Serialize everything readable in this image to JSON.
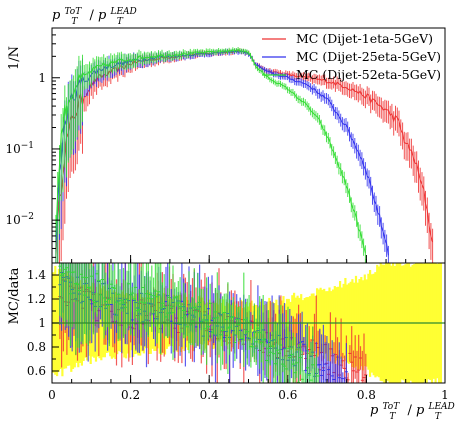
{
  "chart_data": [
    {
      "type": "line",
      "title": "p_T^{ToT}/p_T^{LEAD}",
      "title_parts": {
        "p": "p",
        "sup1": "ToT",
        "sub1": "T",
        "slash": " / ",
        "sup2": "LEAD",
        "sub2": "T"
      },
      "ylabel": "1/N",
      "y_scale": "log",
      "xlim": [
        0,
        1
      ],
      "ylim": [
        0.0025,
        5
      ],
      "y_ticks": [
        {
          "value": 1,
          "label": "1"
        },
        {
          "value": 0.1,
          "label": "10",
          "exp": "−1"
        },
        {
          "value": 0.01,
          "label": "10",
          "exp": "−2"
        }
      ],
      "legend_position": "top-right",
      "series": [
        {
          "name": "MC (Dijet-1eta-5GeV)",
          "color": "#ee3333",
          "x": [
            0.01,
            0.02,
            0.03,
            0.04,
            0.05,
            0.06,
            0.08,
            0.1,
            0.12,
            0.15,
            0.18,
            0.2,
            0.25,
            0.3,
            0.35,
            0.4,
            0.45,
            0.48,
            0.5,
            0.52,
            0.55,
            0.6,
            0.65,
            0.7,
            0.75,
            0.8,
            0.85,
            0.88,
            0.9,
            0.92,
            0.95,
            0.97
          ],
          "y": [
            0.004,
            0.02,
            0.08,
            0.15,
            0.25,
            0.35,
            0.55,
            0.8,
            1.0,
            1.2,
            1.4,
            1.6,
            1.8,
            1.95,
            2.1,
            2.2,
            2.3,
            2.4,
            2.2,
            1.5,
            1.25,
            1.1,
            1.0,
            0.9,
            0.75,
            0.55,
            0.35,
            0.25,
            0.12,
            0.08,
            0.02,
            0.004
          ]
        },
        {
          "name": "MC (Dijet-25eta-5GeV)",
          "color": "#3333ee",
          "x": [
            0.01,
            0.02,
            0.03,
            0.04,
            0.05,
            0.06,
            0.08,
            0.1,
            0.12,
            0.15,
            0.18,
            0.2,
            0.25,
            0.3,
            0.35,
            0.4,
            0.45,
            0.48,
            0.5,
            0.52,
            0.55,
            0.6,
            0.65,
            0.7,
            0.72,
            0.75,
            0.78,
            0.8,
            0.82,
            0.84,
            0.86
          ],
          "y": [
            0.005,
            0.05,
            0.2,
            0.35,
            0.5,
            0.7,
            0.9,
            1.1,
            1.3,
            1.5,
            1.6,
            1.7,
            1.9,
            2.0,
            2.1,
            2.2,
            2.3,
            2.35,
            2.2,
            1.5,
            1.2,
            1.0,
            0.8,
            0.5,
            0.35,
            0.2,
            0.09,
            0.05,
            0.02,
            0.008,
            0.003
          ]
        },
        {
          "name": "MC (Dijet-52eta-5GeV)",
          "color": "#33dd33",
          "x": [
            0.01,
            0.02,
            0.03,
            0.04,
            0.05,
            0.06,
            0.08,
            0.1,
            0.12,
            0.15,
            0.18,
            0.2,
            0.25,
            0.3,
            0.35,
            0.4,
            0.45,
            0.48,
            0.5,
            0.52,
            0.55,
            0.6,
            0.65,
            0.68,
            0.7,
            0.72,
            0.75,
            0.78,
            0.8
          ],
          "y": [
            0.006,
            0.1,
            0.3,
            0.45,
            0.6,
            0.8,
            1.0,
            1.25,
            1.4,
            1.6,
            1.75,
            1.85,
            2.0,
            2.1,
            2.2,
            2.3,
            2.4,
            2.45,
            2.3,
            1.4,
            1.0,
            0.7,
            0.4,
            0.25,
            0.15,
            0.08,
            0.03,
            0.008,
            0.003
          ]
        }
      ]
    },
    {
      "type": "line",
      "ylabel": "MC/data",
      "xlabel": "p_T^{ToT}/p_T^{LEAD}",
      "xlim": [
        0,
        1
      ],
      "ylim": [
        0.5,
        1.5
      ],
      "x_ticks": [
        {
          "value": 0,
          "label": "0"
        },
        {
          "value": 0.2,
          "label": "0.2"
        },
        {
          "value": 0.4,
          "label": "0.4"
        },
        {
          "value": 0.6,
          "label": "0.6"
        },
        {
          "value": 0.8,
          "label": "0.8"
        },
        {
          "value": 1,
          "label": "1"
        }
      ],
      "y_ticks": [
        {
          "value": 1.4,
          "label": "1.4"
        },
        {
          "value": 1.2,
          "label": "1.2"
        },
        {
          "value": 1.0,
          "label": "1"
        },
        {
          "value": 0.8,
          "label": "0.8"
        },
        {
          "value": 0.6,
          "label": "0.6"
        }
      ],
      "reference_line": 1.0,
      "reference_color": "#2e8b2e",
      "data_band": {
        "color": "#ffff33",
        "x": [
          0.0,
          0.1,
          0.2,
          0.3,
          0.4,
          0.5,
          0.6,
          0.7,
          0.8,
          0.85,
          0.9,
          1.0
        ],
        "low": [
          0.55,
          0.7,
          0.75,
          0.78,
          0.82,
          0.85,
          0.8,
          0.72,
          0.6,
          0.5,
          0.5,
          0.5
        ],
        "high": [
          1.45,
          1.3,
          1.25,
          1.22,
          1.18,
          1.15,
          1.2,
          1.28,
          1.4,
          1.5,
          1.5,
          1.5
        ]
      },
      "series": [
        {
          "name": "MC (Dijet-1eta-5GeV)",
          "color": "#ee3333",
          "x": [
            0.02,
            0.05,
            0.1,
            0.15,
            0.2,
            0.3,
            0.4,
            0.5,
            0.55,
            0.6,
            0.65,
            0.7,
            0.75,
            0.8
          ],
          "y": [
            1.25,
            1.2,
            1.15,
            1.1,
            1.08,
            1.05,
            1.0,
            0.9,
            0.85,
            0.8,
            0.75,
            0.7,
            0.65,
            0.6
          ]
        },
        {
          "name": "MC (Dijet-25eta-5GeV)",
          "color": "#3333ee",
          "x": [
            0.02,
            0.05,
            0.1,
            0.15,
            0.2,
            0.3,
            0.4,
            0.5,
            0.55,
            0.6,
            0.65,
            0.7,
            0.72,
            0.75
          ],
          "y": [
            1.35,
            1.3,
            1.25,
            1.2,
            1.15,
            1.1,
            1.0,
            0.92,
            0.85,
            0.78,
            0.7,
            0.6,
            0.55,
            0.5
          ]
        },
        {
          "name": "MC (Dijet-52eta-5GeV)",
          "color": "#33dd33",
          "x": [
            0.02,
            0.05,
            0.1,
            0.15,
            0.2,
            0.3,
            0.4,
            0.5,
            0.55,
            0.6,
            0.62,
            0.65,
            0.68
          ],
          "y": [
            1.45,
            1.35,
            1.3,
            1.25,
            1.2,
            1.12,
            1.05,
            0.9,
            0.8,
            0.7,
            0.62,
            0.55,
            0.5
          ]
        }
      ]
    }
  ]
}
